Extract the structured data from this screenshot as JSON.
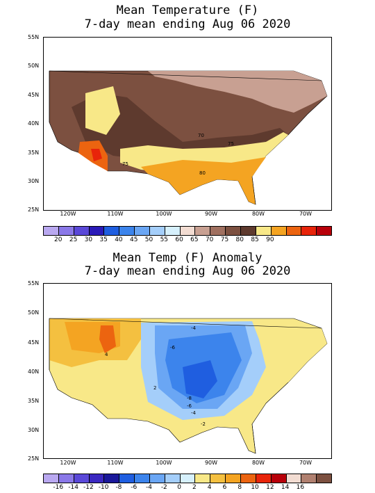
{
  "map1": {
    "title_line1": "Mean Temperature (F)",
    "title_line2": "7-day mean ending Aug 06 2020",
    "lat_labels": [
      "55N",
      "50N",
      "45N",
      "40N",
      "35N",
      "30N",
      "25N"
    ],
    "lon_labels": [
      "120W",
      "110W",
      "100W",
      "90W",
      "80W",
      "70W"
    ],
    "contour_labels": [
      "70",
      "75",
      "75",
      "80"
    ],
    "colorbar_labels": [
      "20",
      "25",
      "30",
      "35",
      "40",
      "45",
      "50",
      "55",
      "60",
      "65",
      "70",
      "75",
      "80",
      "85",
      "90"
    ],
    "colorbar_colors": [
      "#b9a8f0",
      "#8a78e8",
      "#5a48d8",
      "#2a1ab8",
      "#1f5ee0",
      "#3c84ec",
      "#6aa6f4",
      "#a4cefa",
      "#d6f0fc",
      "#f2dcd2",
      "#c8a092",
      "#a07060",
      "#7c5040",
      "#5e3a2e",
      "#f8e888",
      "#f4a422",
      "#ec6410",
      "#e8240a",
      "#b8000a"
    ]
  },
  "map2": {
    "title_line1": "Mean Temp (F) Anomaly",
    "title_line2": "7-day mean ending Aug 06 2020",
    "lat_labels": [
      "55N",
      "50N",
      "45N",
      "40N",
      "35N",
      "30N",
      "25N"
    ],
    "lon_labels": [
      "120W",
      "110W",
      "100W",
      "90W",
      "80W",
      "70W"
    ],
    "contour_labels": [
      "-4",
      "-6",
      "4",
      "-8",
      "-6",
      "-4",
      "-2",
      "2"
    ],
    "colorbar_labels": [
      "-16",
      "-14",
      "-12",
      "-10",
      "-8",
      "-6",
      "-4",
      "-2",
      "0",
      "2",
      "4",
      "6",
      "8",
      "10",
      "12",
      "14",
      "16"
    ],
    "colorbar_colors": [
      "#b9a8f0",
      "#8a78e8",
      "#5a48d8",
      "#3a28c0",
      "#1a189a",
      "#1f5ee0",
      "#3c84ec",
      "#6aa6f4",
      "#a4cefa",
      "#d6f0fc",
      "#f8e888",
      "#f4c040",
      "#f4a422",
      "#ec6410",
      "#e8240a",
      "#b8000a",
      "#f2dcd2",
      "#b08070",
      "#7c5040"
    ]
  }
}
